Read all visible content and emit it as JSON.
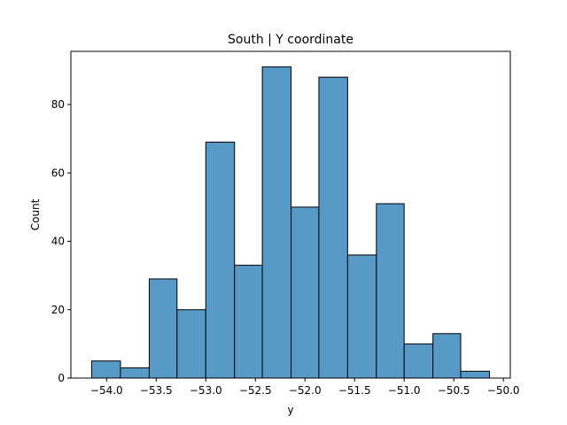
{
  "chart_data": {
    "type": "bar",
    "title": "South | Y coordinate",
    "xlabel": "y",
    "ylabel": "Count",
    "bin_edges": [
      -54.15,
      -53.86,
      -53.57,
      -53.29,
      -53.0,
      -52.71,
      -52.43,
      -52.14,
      -51.86,
      -51.57,
      -51.28,
      -51.0,
      -50.71,
      -50.43,
      -50.14
    ],
    "counts": [
      5,
      3,
      29,
      20,
      69,
      33,
      91,
      50,
      88,
      36,
      51,
      10,
      13,
      2
    ],
    "xlim": [
      -54.36,
      -49.93
    ],
    "ylim": [
      0,
      95.55
    ],
    "xticks": [
      -54.0,
      -53.5,
      -53.0,
      -52.5,
      -52.0,
      -51.5,
      -51.0,
      -50.5,
      -50.0
    ],
    "xtick_labels": [
      "−54.0",
      "−53.5",
      "−53.0",
      "−52.5",
      "−52.0",
      "−51.5",
      "−51.0",
      "−50.5",
      "−50.0"
    ],
    "yticks": [
      0,
      20,
      40,
      60,
      80
    ],
    "ytick_labels": [
      "0",
      "20",
      "40",
      "60",
      "80"
    ],
    "grid": false,
    "bar_color": "#5799c7",
    "edge_color": "#000000"
  }
}
